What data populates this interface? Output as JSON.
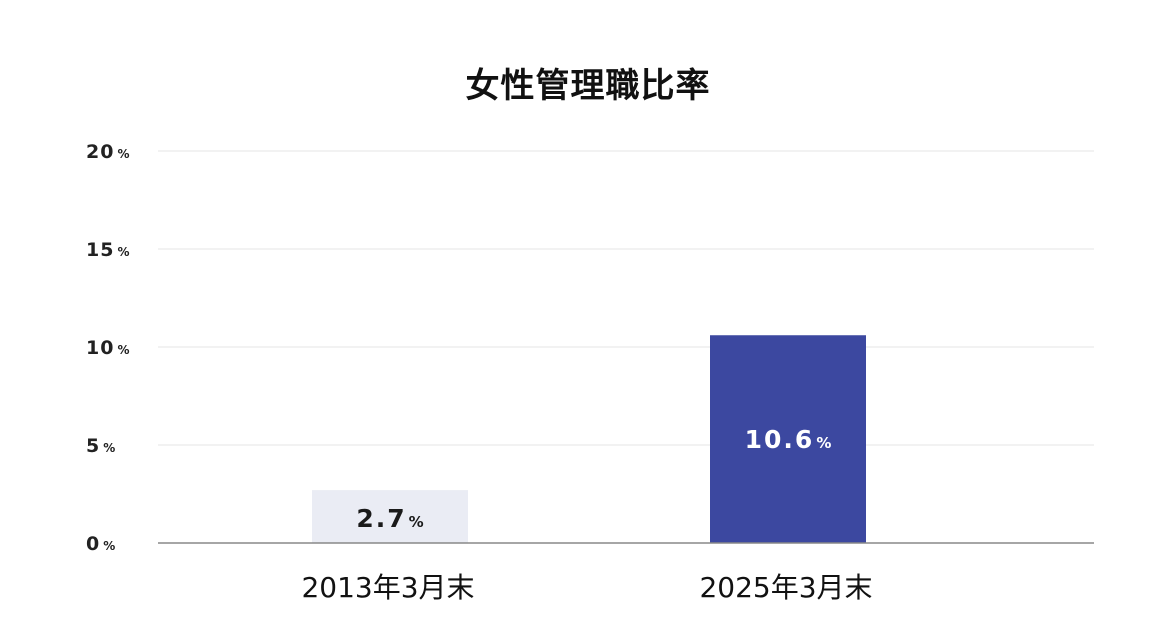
{
  "chart_data": {
    "type": "bar",
    "title": "女性管理職比率",
    "categories": [
      "2013年3月末",
      "2025年3月末"
    ],
    "values": [
      2.7,
      10.6
    ],
    "value_labels": [
      "2.7",
      "10.6"
    ],
    "unit": "%",
    "yticks": [
      "20",
      "15",
      "10",
      "5",
      "0"
    ],
    "ylim": [
      0,
      20
    ],
    "grid": true,
    "bar_colors": [
      "#eaecf4",
      "#3c48a0"
    ],
    "label_colors": [
      "#1a1a1a",
      "#ffffff"
    ],
    "axis_color": "#888888",
    "grid_color": "#e6e6e6"
  }
}
